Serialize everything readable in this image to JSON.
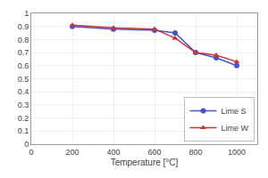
{
  "chart_data": {
    "type": "line",
    "xlabel": "Temperature [°C]",
    "x": [
      200,
      400,
      600,
      700,
      800,
      900,
      1000
    ],
    "series": [
      {
        "name": "Lime S",
        "color": "#4455cc",
        "marker": "circle",
        "values": [
          0.9,
          0.88,
          0.87,
          0.85,
          0.7,
          0.66,
          0.6
        ]
      },
      {
        "name": "Lime W",
        "color": "#cc3333",
        "marker": "triangle-up",
        "values": [
          0.91,
          0.89,
          0.88,
          0.81,
          0.7,
          0.68,
          0.63
        ]
      }
    ],
    "xlim": [
      0,
      1100
    ],
    "ylim": [
      0,
      1
    ],
    "xticks": [
      0,
      200,
      400,
      600,
      800,
      1000
    ],
    "yticks": [
      0,
      0.1,
      0.2,
      0.3,
      0.4,
      0.5,
      0.6,
      0.7,
      0.8,
      0.9,
      1
    ],
    "grid": true,
    "legend": "lower right"
  }
}
